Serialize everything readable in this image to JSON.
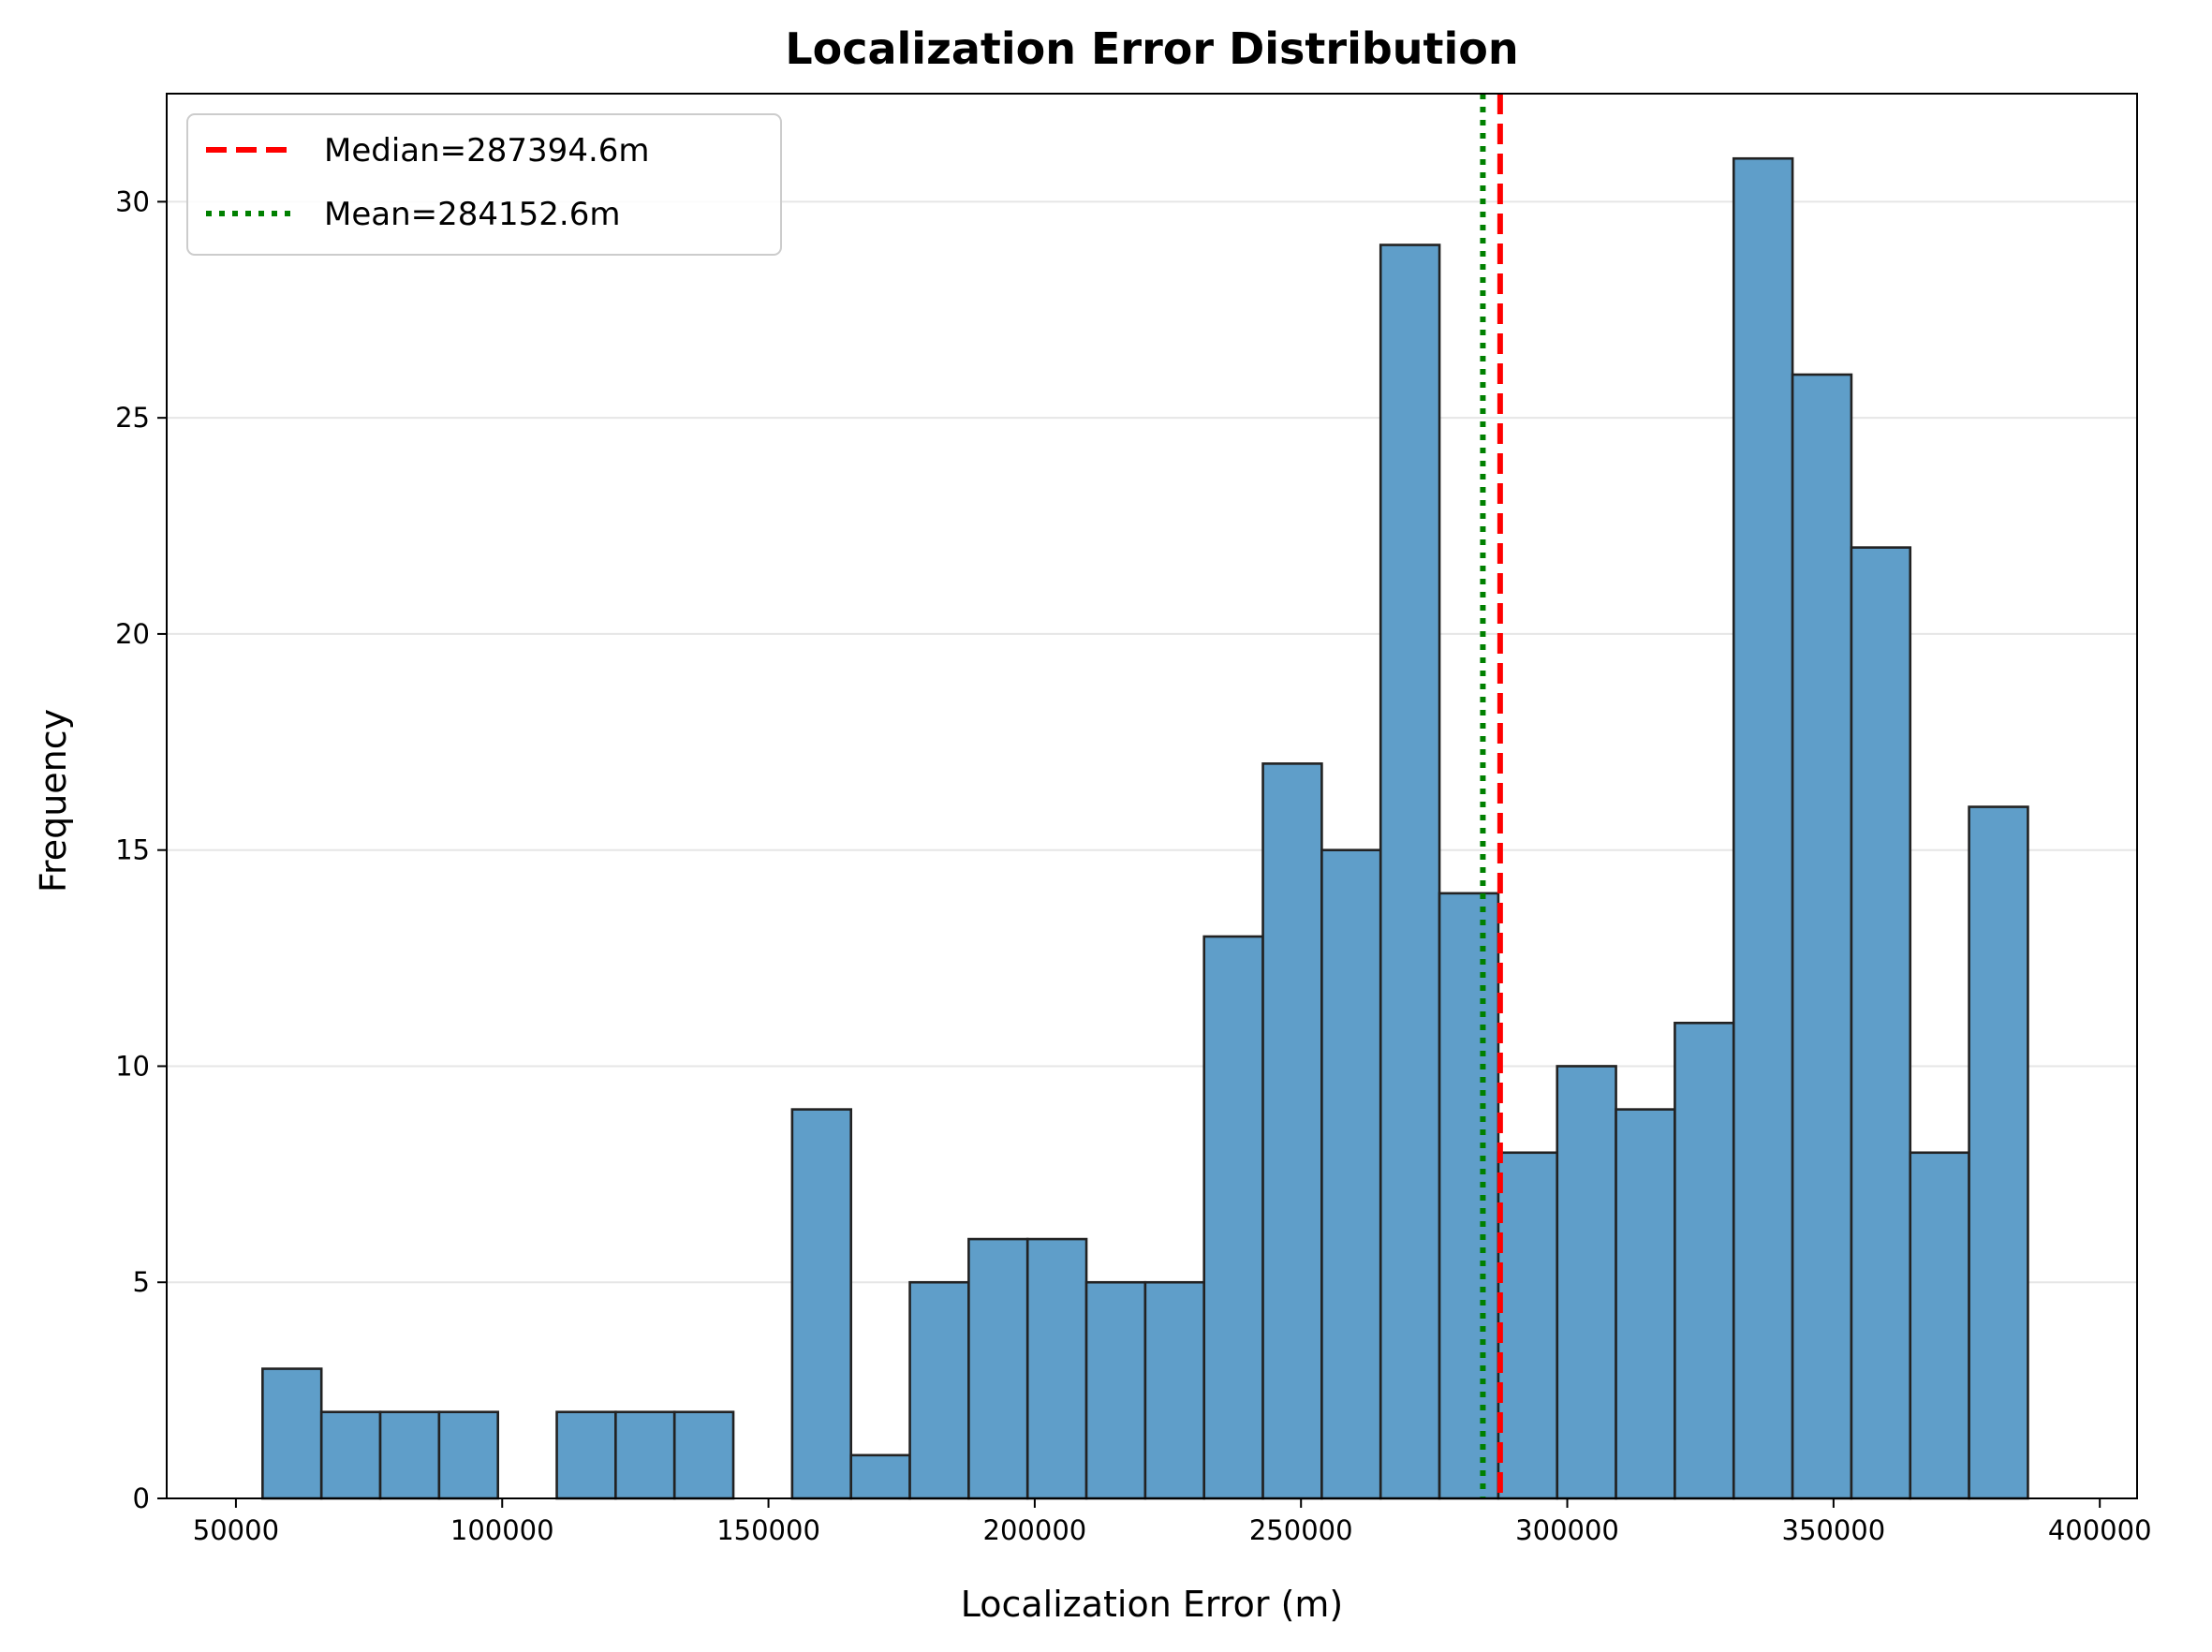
{
  "chart_data": {
    "type": "bar",
    "title": "Localization Error Distribution",
    "xlabel": "Localization Error (m)",
    "ylabel": "Frequency",
    "xlim": [
      37000,
      407000
    ],
    "ylim": [
      0,
      32.5
    ],
    "xticks": [
      50000,
      100000,
      150000,
      200000,
      250000,
      300000,
      350000,
      400000
    ],
    "yticks": [
      0,
      5,
      10,
      15,
      20,
      25,
      30
    ],
    "grid": "y",
    "legend_position": "top-left",
    "bin_edges": [
      55000,
      66050,
      77100,
      88150,
      99200,
      110250,
      121300,
      132350,
      143400,
      154450,
      165500,
      176550,
      187600,
      198650,
      209700,
      220750,
      231800,
      242850,
      253900,
      264950,
      276000,
      287050,
      298100,
      309150,
      320200,
      331250,
      342300,
      353350,
      364400,
      375450,
      386500
    ],
    "values": [
      3,
      2,
      2,
      2,
      0,
      2,
      2,
      2,
      0,
      9,
      1,
      5,
      6,
      6,
      5,
      5,
      13,
      17,
      15,
      29,
      14,
      8,
      10,
      9,
      11,
      31,
      26,
      22,
      8,
      16
    ],
    "bar_color": "#5f9ec9",
    "bar_edge_color": "#222222",
    "reference_lines": [
      {
        "label": "Median=287394.6m",
        "x": 287394.6,
        "color": "#ff0000",
        "style": "dashed"
      },
      {
        "label": "Mean=284152.6m",
        "x": 284152.6,
        "color": "#008000",
        "style": "dotted"
      }
    ]
  }
}
